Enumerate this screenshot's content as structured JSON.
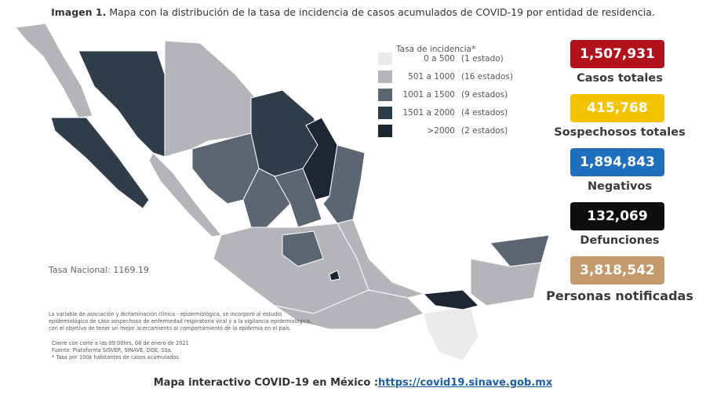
{
  "header": {
    "bold": "Imagen 1.",
    "text": "Mapa con la distribución de la tasa de incidencia de casos acumulados de COVID-19 por entidad de residencia."
  },
  "legend": {
    "title": "Tasa de incidencia*",
    "items": [
      {
        "range": "0 a 500",
        "count": "(1 estado)",
        "color": "#ebebeb"
      },
      {
        "range": "501 a 1000",
        "count": "(16 estados)",
        "color": "#b3b5b8"
      },
      {
        "range": "1001 a 1500",
        "count": "(9 estados)",
        "color": "#5b6672"
      },
      {
        "range": "1501 a 2000",
        "count": "(4 estados)",
        "color": "#2f3d4b"
      },
      {
        "range": ">2000",
        "count": "(2 estados)",
        "color": "#1c2733"
      }
    ]
  },
  "stats": [
    {
      "value": "1,507,931",
      "label": "Casos totales",
      "color": "#b3121c"
    },
    {
      "value": "415,768",
      "label": "Sospechosos totales",
      "color": "#f5c400"
    },
    {
      "value": "1,894,843",
      "label": "Negativos",
      "color": "#1f6fbf"
    },
    {
      "value": "132,069",
      "label": "Defunciones",
      "color": "#0d0d0d"
    },
    {
      "value": "3,818,542",
      "label": "Personas notificadas",
      "color": "#c49a6c"
    }
  ],
  "national_rate": "Tasa Nacional: 1169.19",
  "notes": [
    "La variable de asociación y dictaminación clínica - epidemiológica, se incorporó al estudio",
    "epidemiológico de caso sospechoso de enfermedad respiratoria viral y a la vigilancia epidemiológica,",
    "con el objetivo de tener un mejor acercamiento al comportamiento de la epidemia en el país.",
    "Cierre con corte a las 09:00hrs, 08 de enero de 2021",
    "Fuente: Plataforma SISVER, SINAVE, DGE, SSa.",
    "* Tasa por 100k habitantes de casos acumulados."
  ],
  "footer": {
    "text": "Mapa interactivo COVID-19 en México :",
    "link": "https://covid19.sinave.gob.mx"
  }
}
